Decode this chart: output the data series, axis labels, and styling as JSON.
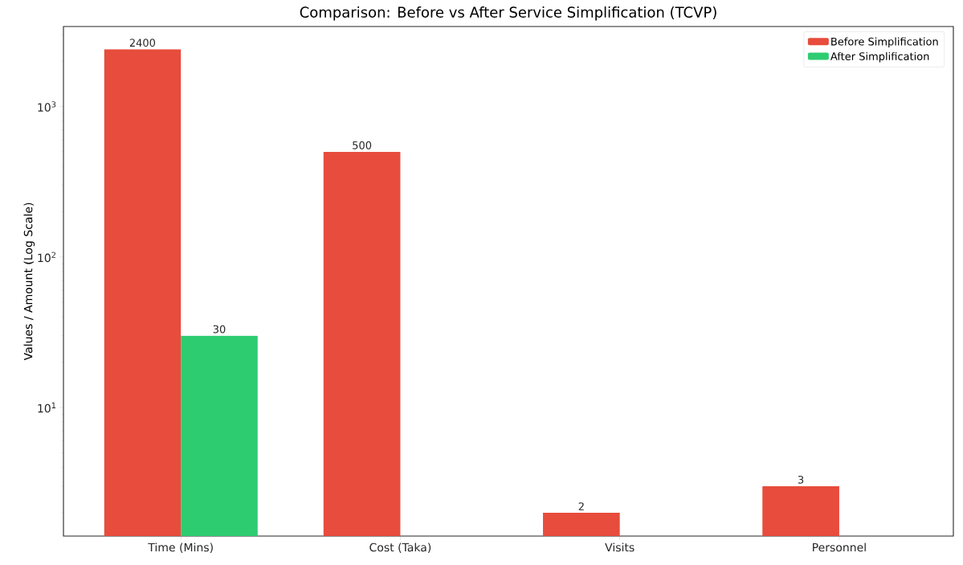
{
  "chart_data": {
    "type": "bar",
    "title": "Comparison: Before vs After Service Simplification (TCVP)",
    "ylabel": "Values / Amount (Log Scale)",
    "categories": [
      "Time (Mins)",
      "Cost (Taka)",
      "Visits",
      "Personnel"
    ],
    "series": [
      {
        "name": "Before Simplification",
        "color": "#e74c3c",
        "values": [
          2400,
          500,
          2,
          3
        ]
      },
      {
        "name": "After Simplification",
        "color": "#2ecc71",
        "values": [
          30,
          null,
          null,
          null
        ]
      }
    ],
    "log": "y",
    "ylim": [
      1.4,
      3400
    ],
    "yticks": [
      {
        "value": 2,
        "label": null
      },
      {
        "value": 3,
        "label": null
      },
      {
        "value": 4,
        "label": null
      },
      {
        "value": 5,
        "label": null
      },
      {
        "value": 6,
        "label": null
      },
      {
        "value": 7,
        "label": null
      },
      {
        "value": 8,
        "label": null
      },
      {
        "value": 9,
        "label": null
      },
      {
        "value": 10,
        "label": "10$^{1}$"
      },
      {
        "value": 20,
        "label": null
      },
      {
        "value": 30,
        "label": null
      },
      {
        "value": 40,
        "label": null
      },
      {
        "value": 50,
        "label": null
      },
      {
        "value": 60,
        "label": null
      },
      {
        "value": 70,
        "label": null
      },
      {
        "value": 80,
        "label": null
      },
      {
        "value": 90,
        "label": null
      },
      {
        "value": 100,
        "label": "10$^{2}$"
      },
      {
        "value": 200,
        "label": null
      },
      {
        "value": 300,
        "label": null
      },
      {
        "value": 400,
        "label": null
      },
      {
        "value": 500,
        "label": null
      },
      {
        "value": 600,
        "label": null
      },
      {
        "value": 700,
        "label": null
      },
      {
        "value": 800,
        "label": null
      },
      {
        "value": 900,
        "label": null
      },
      {
        "value": 1000,
        "label": "10$^{3}$"
      },
      {
        "value": 2000,
        "label": null
      },
      {
        "value": 3000,
        "label": null
      }
    ],
    "legend": "top right",
    "grid": false,
    "data_labels": true
  }
}
